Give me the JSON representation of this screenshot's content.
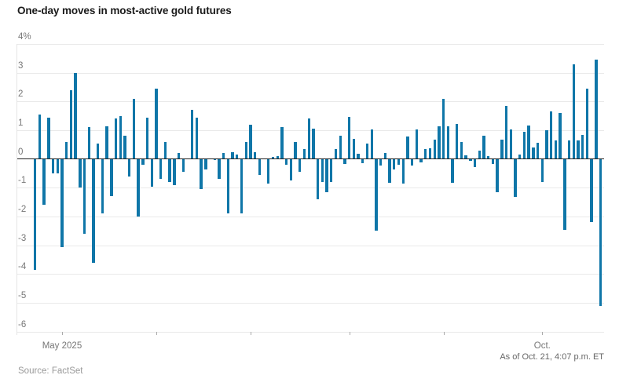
{
  "title": "One-day moves in most-active gold futures",
  "source_label": "Source: FactSet",
  "as_of_label": "As of Oct. 21, 4:07 p.m. ET",
  "colors": {
    "bar": "#0f76a8",
    "grid": "#e9e9e9",
    "zero_line": "#222222",
    "axis_line": "#e4e4e4",
    "tick_mark": "#aaaaaa",
    "axis_text": "#777777",
    "title_text": "#1a1a1a",
    "note_text": "#666666",
    "source_text": "#999999"
  },
  "chart_data": {
    "type": "bar",
    "title": "One-day moves in most-active gold futures",
    "unit": "%",
    "ylim": [
      -6,
      4
    ],
    "grid": true,
    "legend": "none",
    "y_ticks": [
      {
        "value": 4,
        "label": "4%"
      },
      {
        "value": 3,
        "label": "3"
      },
      {
        "value": 2,
        "label": "2"
      },
      {
        "value": 1,
        "label": "1"
      },
      {
        "value": 0,
        "label": "0"
      },
      {
        "value": -1,
        "label": "-1"
      },
      {
        "value": -2,
        "label": "-2"
      },
      {
        "value": -3,
        "label": "-3"
      },
      {
        "value": -4,
        "label": "-4"
      },
      {
        "value": -5,
        "label": "-5"
      },
      {
        "value": -6,
        "label": "-6"
      }
    ],
    "x_ticks": [
      {
        "index": 6,
        "label": "May 2025"
      },
      {
        "index": 27,
        "label": ""
      },
      {
        "index": 48,
        "label": ""
      },
      {
        "index": 70,
        "label": ""
      },
      {
        "index": 91,
        "label": ""
      },
      {
        "index": 113,
        "label": "Oct."
      }
    ],
    "values": [
      -3.85,
      1.55,
      -1.6,
      1.45,
      -0.5,
      -0.5,
      -3.05,
      0.6,
      2.4,
      3.0,
      -1.0,
      -2.6,
      1.1,
      -3.6,
      0.55,
      -1.9,
      1.15,
      -1.3,
      1.4,
      1.5,
      0.8,
      -0.6,
      2.1,
      -2.0,
      -0.2,
      1.45,
      -0.95,
      2.45,
      -0.7,
      0.6,
      -0.8,
      -0.9,
      0.2,
      -0.45,
      0.02,
      1.7,
      1.45,
      -1.05,
      -0.35,
      0.02,
      -0.02,
      -0.7,
      0.2,
      -1.9,
      0.25,
      0.15,
      -1.9,
      0.6,
      1.2,
      0.25,
      -0.55,
      0.02,
      -0.85,
      0.07,
      0.11,
      1.1,
      -0.2,
      -0.75,
      0.6,
      -0.45,
      0.35,
      1.4,
      1.05,
      -1.4,
      -0.8,
      -1.15,
      -0.8,
      0.35,
      0.8,
      -0.18,
      1.47,
      0.7,
      0.18,
      -0.14,
      0.55,
      1.02,
      -2.5,
      -0.22,
      0.2,
      -0.82,
      -0.35,
      -0.2,
      -0.85,
      0.77,
      -0.23,
      1.02,
      -0.12,
      0.35,
      0.36,
      0.68,
      1.14,
      2.1,
      1.15,
      -0.84,
      1.23,
      0.59,
      0.13,
      -0.05,
      -0.27,
      0.29,
      0.82,
      0.11,
      -0.18,
      -1.16,
      0.68,
      1.84,
      1.02,
      -1.32,
      0.15,
      0.95,
      1.16,
      0.41,
      0.56,
      -0.8,
      1.0,
      1.65,
      0.64,
      1.61,
      -2.45,
      0.64,
      3.3,
      0.65,
      0.84,
      2.45,
      -2.2,
      3.45,
      -5.1
    ]
  }
}
